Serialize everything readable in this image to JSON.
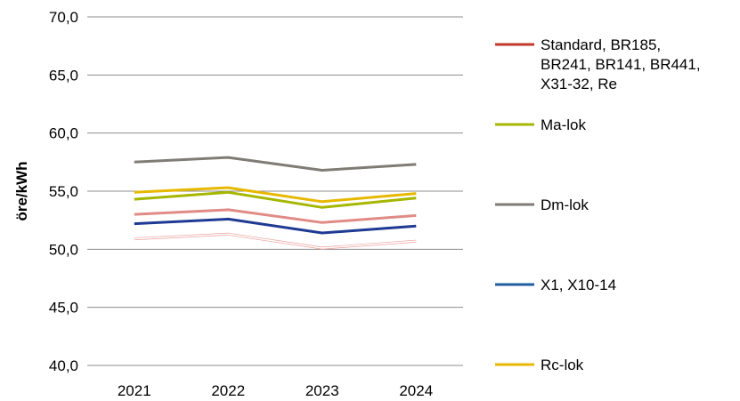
{
  "chart_data": {
    "type": "line",
    "title": "",
    "xlabel": "",
    "ylabel": "öre/kWh",
    "categories": [
      "2021",
      "2022",
      "2023",
      "2024"
    ],
    "ylim": [
      40,
      70
    ],
    "yticks": [
      "40,0",
      "45,0",
      "50,0",
      "55,0",
      "60,0",
      "65,0",
      "70,0"
    ],
    "grid": true,
    "legend_position": "right",
    "series": [
      {
        "name": "Dm-lok",
        "color": "#7f7b75",
        "values": [
          57.5,
          57.9,
          56.8,
          57.3
        ],
        "width": 3,
        "in_legend": true,
        "legend_slot": 2
      },
      {
        "name": "Rc-lok",
        "color": "#e6b800",
        "values": [
          54.9,
          55.3,
          54.1,
          54.8
        ],
        "width": 3,
        "in_legend": true,
        "legend_slot": 4
      },
      {
        "name": "Ma-lok",
        "color": "#a5b700",
        "values": [
          54.3,
          54.9,
          53.6,
          54.4
        ],
        "width": 3,
        "in_legend": true,
        "legend_slot": 1
      },
      {
        "name": "",
        "color": "#e08b86",
        "values": [
          53.0,
          53.4,
          52.3,
          52.9
        ],
        "width": 3,
        "in_legend": false
      },
      {
        "name": "X1, X10-14",
        "color": "#1f3a93",
        "values": [
          52.2,
          52.6,
          51.4,
          52.0
        ],
        "width": 3,
        "in_legend": true,
        "legend_slot": 3
      },
      {
        "name": "Standard, BR185,\nBR241, BR141, BR441,\nX31-32, Re",
        "color": "#c0392b",
        "values": [
          50.9,
          51.3,
          50.1,
          50.7
        ],
        "width": 1,
        "in_legend": true,
        "legend_slot": 0
      }
    ],
    "legend_lines": [
      [
        "Standard, BR185,",
        "BR241, BR141, BR441,",
        "X31-32, Re"
      ],
      [
        "Ma-lok"
      ],
      [
        "Dm-lok"
      ],
      [
        "X1, X10-14"
      ],
      [
        "Rc-lok"
      ]
    ],
    "legend_colors": [
      "#c0392b",
      "#a5b700",
      "#7f7b75",
      "#1f5fa0",
      "#e6b800"
    ]
  }
}
